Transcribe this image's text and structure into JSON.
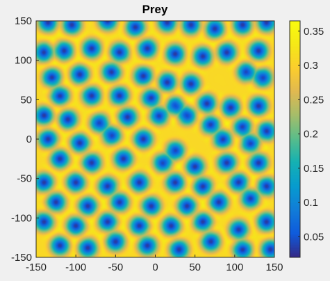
{
  "chart_data": {
    "type": "heatmap",
    "title": "Prey",
    "xlabel": "",
    "ylabel": "",
    "xlim": [
      -150,
      150
    ],
    "ylim": [
      -150,
      150
    ],
    "xticks": [
      -150,
      -100,
      -50,
      0,
      50,
      100,
      150
    ],
    "yticks": [
      -150,
      -100,
      -50,
      0,
      50,
      100,
      150
    ],
    "colorbar": {
      "range": [
        0.02,
        0.365
      ],
      "ticks": [
        0.05,
        0.1,
        0.15,
        0.2,
        0.25,
        0.3,
        0.35
      ],
      "colormap": "parula"
    },
    "field": {
      "background_value": 0.31,
      "spot_min_value": 0.03,
      "spot_radius": 10,
      "spots": [
        [
          -135,
          148
        ],
        [
          -105,
          145
        ],
        [
          -60,
          150
        ],
        [
          -25,
          142
        ],
        [
          15,
          148
        ],
        [
          45,
          145
        ],
        [
          75,
          140
        ],
        [
          110,
          145
        ],
        [
          140,
          148
        ],
        [
          -140,
          110
        ],
        [
          -115,
          112
        ],
        [
          -80,
          115
        ],
        [
          -45,
          110
        ],
        [
          -10,
          115
        ],
        [
          25,
          108
        ],
        [
          60,
          105
        ],
        [
          90,
          110
        ],
        [
          130,
          112
        ],
        [
          -130,
          78
        ],
        [
          -95,
          82
        ],
        [
          -55,
          85
        ],
        [
          -15,
          80
        ],
        [
          15,
          72
        ],
        [
          45,
          70
        ],
        [
          115,
          85
        ],
        [
          135,
          78
        ],
        [
          -120,
          55
        ],
        [
          -80,
          55
        ],
        [
          -45,
          55
        ],
        [
          -5,
          52
        ],
        [
          25,
          42
        ],
        [
          65,
          45
        ],
        [
          95,
          40
        ],
        [
          130,
          42
        ],
        [
          -140,
          30
        ],
        [
          -110,
          25
        ],
        [
          -70,
          20
        ],
        [
          -35,
          28
        ],
        [
          5,
          30
        ],
        [
          40,
          30
        ],
        [
          70,
          18
        ],
        [
          110,
          15
        ],
        [
          140,
          10
        ],
        [
          -135,
          0
        ],
        [
          -95,
          -5
        ],
        [
          -55,
          5
        ],
        [
          -15,
          0
        ],
        [
          25,
          -15
        ],
        [
          85,
          0
        ],
        [
          120,
          -5
        ],
        [
          -120,
          -25
        ],
        [
          -80,
          -30
        ],
        [
          -40,
          -25
        ],
        [
          10,
          -30
        ],
        [
          50,
          -35
        ],
        [
          90,
          -30
        ],
        [
          130,
          -30
        ],
        [
          -140,
          -55
        ],
        [
          -100,
          -55
        ],
        [
          -60,
          -60
        ],
        [
          -20,
          -55
        ],
        [
          25,
          -55
        ],
        [
          60,
          -60
        ],
        [
          105,
          -55
        ],
        [
          140,
          -60
        ],
        [
          -125,
          -80
        ],
        [
          -85,
          -85
        ],
        [
          -45,
          -80
        ],
        [
          -5,
          -85
        ],
        [
          40,
          -85
        ],
        [
          80,
          -80
        ],
        [
          120,
          -75
        ],
        [
          -140,
          -105
        ],
        [
          -100,
          -110
        ],
        [
          -60,
          -105
        ],
        [
          -20,
          -110
        ],
        [
          20,
          -110
        ],
        [
          60,
          -105
        ],
        [
          105,
          -115
        ],
        [
          140,
          -105
        ],
        [
          -120,
          -135
        ],
        [
          -85,
          -138
        ],
        [
          -50,
          -130
        ],
        [
          -10,
          -135
        ],
        [
          30,
          -140
        ],
        [
          70,
          -130
        ],
        [
          110,
          -140
        ],
        [
          145,
          -140
        ]
      ]
    }
  }
}
